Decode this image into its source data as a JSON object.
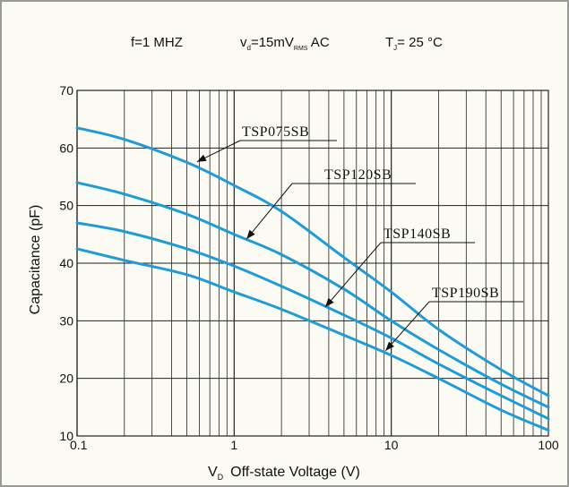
{
  "conditions": {
    "freq": "f=1 MHZ",
    "v_prefix": "v",
    "v_sub": "d",
    "v_value": "=15mV",
    "v_sub2": "RMS",
    "v_suffix": " AC",
    "t_prefix": "T",
    "t_sub": "J",
    "t_value": "= 25 °C"
  },
  "colors": {
    "curve": "#1f9bd6",
    "grid": "#222222",
    "background": "#fbfaf3",
    "border": "#9a9a9a"
  },
  "chart_data": {
    "type": "line",
    "xscale": "log",
    "xlim": [
      0.1,
      100
    ],
    "ylim": [
      10,
      70
    ],
    "x_ticks": [
      "0.1",
      "1",
      "10",
      "100"
    ],
    "y_ticks": [
      "10",
      "20",
      "30",
      "40",
      "50",
      "60",
      "70"
    ],
    "xlabel_main": "V",
    "xlabel_sub": "D",
    "xlabel_rest": "Off-state Voltage (V)",
    "ylabel": "Capacitance (pF)",
    "grid": true,
    "series": [
      {
        "name": "TSP075SB",
        "x": [
          0.1,
          0.2,
          0.5,
          1,
          2,
          5,
          10,
          20,
          50,
          100
        ],
        "y": [
          63.5,
          61.5,
          57.5,
          53.5,
          49,
          41,
          35,
          28.5,
          21.5,
          17
        ]
      },
      {
        "name": "TSP120SB",
        "x": [
          0.1,
          0.2,
          0.5,
          1,
          2,
          5,
          10,
          20,
          50,
          100
        ],
        "y": [
          54,
          52,
          48.5,
          45,
          41.5,
          35.5,
          30,
          25,
          19,
          15
        ]
      },
      {
        "name": "TSP140SB",
        "x": [
          0.1,
          0.2,
          0.5,
          1,
          2,
          5,
          10,
          20,
          50,
          100
        ],
        "y": [
          47,
          45.5,
          42.5,
          39.5,
          36,
          31,
          27,
          22.5,
          17,
          13
        ]
      },
      {
        "name": "TSP190SB",
        "x": [
          0.1,
          0.2,
          0.5,
          1,
          2,
          5,
          10,
          20,
          50,
          100
        ],
        "y": [
          42.5,
          40.5,
          38,
          35,
          32,
          27.5,
          24,
          20,
          14.5,
          11
        ]
      }
    ]
  }
}
